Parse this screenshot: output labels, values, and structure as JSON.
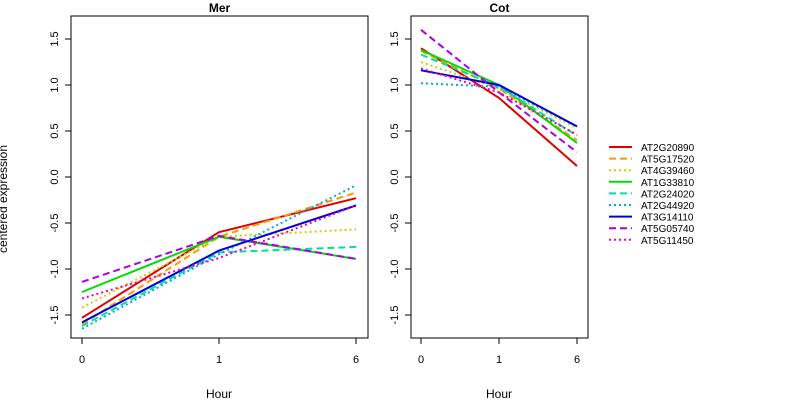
{
  "chart_data": {
    "type": "line",
    "ylabel": "centered expression",
    "xlabel": "Hour",
    "x_categories": [
      "0",
      "1",
      "6"
    ],
    "ylim": [
      -1.75,
      1.75
    ],
    "yticks": [
      -1.5,
      -1.0,
      -0.5,
      0.0,
      0.5,
      1.0,
      1.5
    ],
    "ytick_labels": [
      "-1.5",
      "-1.0",
      "-0.5",
      "0.0",
      "0.5",
      "1.0",
      "1.5"
    ],
    "grid": false,
    "legend_placement": "right",
    "series": [
      {
        "name": "AT2G20890",
        "color": "#e00000",
        "dash": "solid"
      },
      {
        "name": "AT5G17520",
        "color": "#ff9900",
        "dash": "dashed"
      },
      {
        "name": "AT4G39460",
        "color": "#c8d400",
        "dash": "dotted"
      },
      {
        "name": "AT1G33810",
        "color": "#00dd00",
        "dash": "solid"
      },
      {
        "name": "AT2G24020",
        "color": "#00e0a0",
        "dash": "dashed"
      },
      {
        "name": "AT2G44920",
        "color": "#00a8e8",
        "dash": "dotted"
      },
      {
        "name": "AT3G14110",
        "color": "#0000dd",
        "dash": "solid"
      },
      {
        "name": "AT5G05740",
        "color": "#aa00ee",
        "dash": "dashed"
      },
      {
        "name": "AT5G11450",
        "color": "#ee00aa",
        "dash": "dotted"
      }
    ],
    "panels": [
      {
        "title": "Mer",
        "values": [
          [
            -1.53,
            -0.6,
            -0.23
          ],
          [
            -1.6,
            -0.65,
            -0.17
          ],
          [
            -1.42,
            -0.65,
            -0.57
          ],
          [
            -1.25,
            -0.65,
            -0.89
          ],
          [
            -1.62,
            -0.82,
            -0.76
          ],
          [
            -1.65,
            -0.84,
            -0.09
          ],
          [
            -1.58,
            -0.8,
            -0.31
          ],
          [
            -1.14,
            -0.64,
            -0.89
          ],
          [
            -1.32,
            -0.88,
            -0.31
          ]
        ]
      },
      {
        "title": "Cot",
        "values": [
          [
            1.4,
            0.86,
            0.12
          ],
          [
            1.37,
            0.96,
            0.4
          ],
          [
            1.25,
            0.96,
            0.53
          ],
          [
            1.38,
            1.0,
            0.37
          ],
          [
            1.33,
            0.98,
            0.45
          ],
          [
            1.02,
            0.98,
            0.55
          ],
          [
            1.16,
            1.0,
            0.55
          ],
          [
            1.6,
            0.92,
            0.27
          ],
          [
            1.18,
            0.92,
            0.46
          ]
        ]
      }
    ]
  }
}
